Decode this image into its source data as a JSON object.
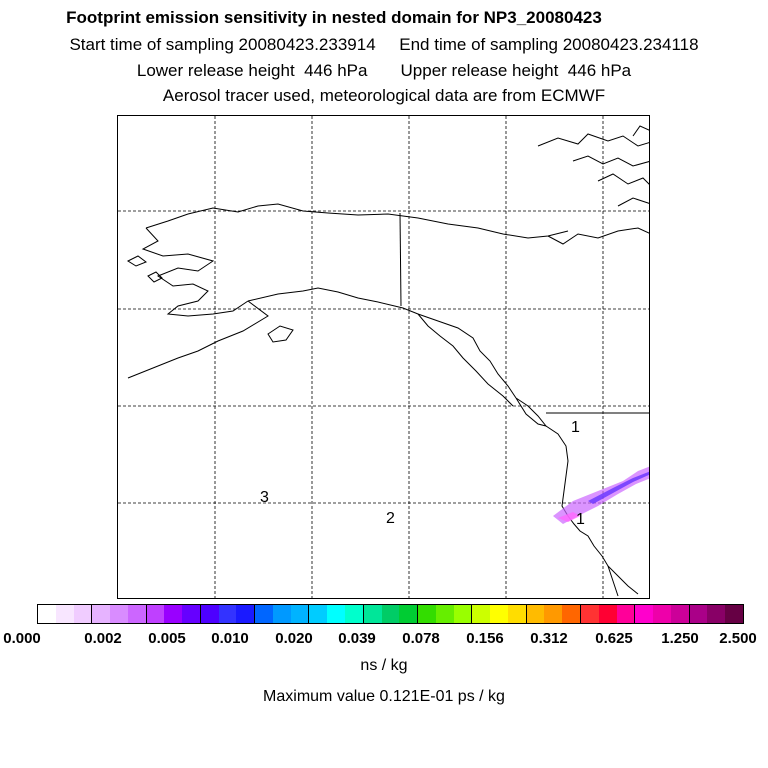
{
  "header": {
    "title": "Footprint emission sensitivity in nested domain for NP3_20080423",
    "sampling_line": "Start time of sampling 20080423.233914     End time of sampling 20080423.234118",
    "release_line": "Lower release height  446 hPa       Upper release height  446 hPa",
    "source_line": "Aerosol tracer used, meteorological data are from ECMWF"
  },
  "map": {
    "markers": [
      {
        "label": "1"
      },
      {
        "label": "2"
      },
      {
        "label": "3"
      },
      {
        "label": "1"
      }
    ],
    "footprint_color": "#cc33ff"
  },
  "colorbar": {
    "colors": [
      "#ffffff",
      "#f8e6ff",
      "#f0ccff",
      "#e6b3ff",
      "#d98cff",
      "#cc66ff",
      "#bf40ff",
      "#9900ff",
      "#6600ff",
      "#4d00ff",
      "#3333ff",
      "#1a1aff",
      "#0066ff",
      "#0099ff",
      "#00b3ff",
      "#00ccff",
      "#00ffff",
      "#00ffcc",
      "#00e699",
      "#00cc66",
      "#00cc33",
      "#33dd00",
      "#66ee00",
      "#99ff00",
      "#ccff00",
      "#ffff00",
      "#ffdd00",
      "#ffbb00",
      "#ff9900",
      "#ff6600",
      "#ff3333",
      "#ff0033",
      "#ff0099",
      "#ff00cc",
      "#ee00aa",
      "#cc0099",
      "#aa0088",
      "#880066",
      "#660044"
    ],
    "ticks": [
      "0.000",
      "0.002",
      "0.005",
      "0.010",
      "0.020",
      "0.039",
      "0.078",
      "0.156",
      "0.312",
      "0.625",
      "1.250",
      "2.500"
    ],
    "units": "ns / kg"
  },
  "footer": {
    "max_value": "Maximum value  0.121E-01 ps / kg"
  }
}
